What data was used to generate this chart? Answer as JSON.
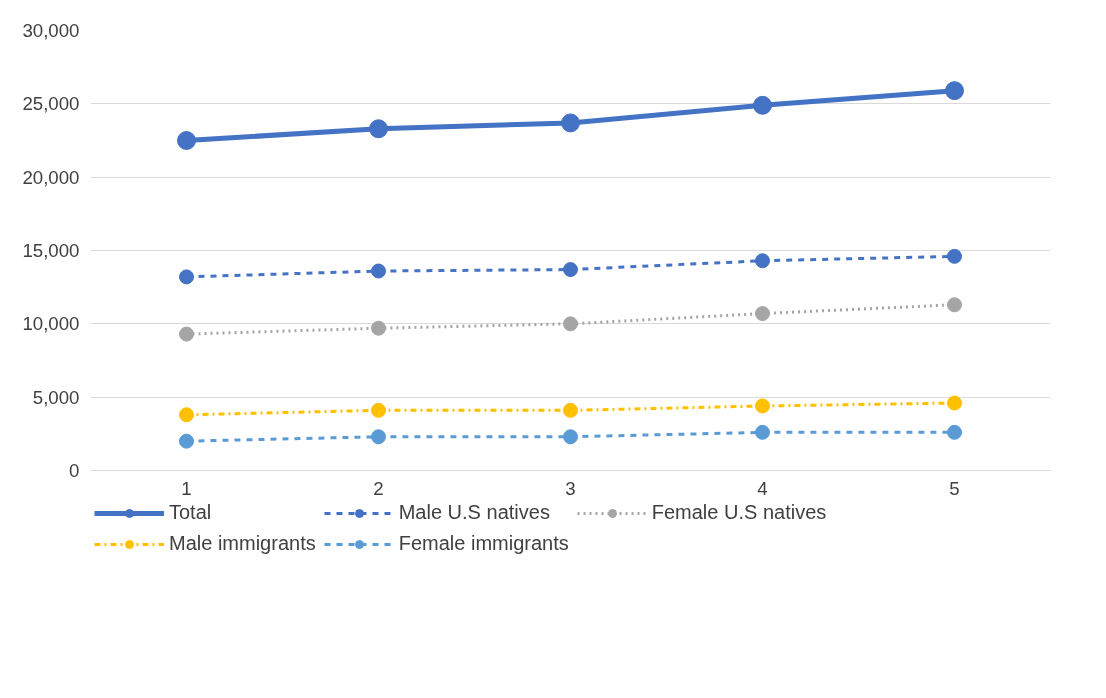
{
  "chart_data": {
    "type": "line",
    "x": [
      1,
      2,
      3,
      4,
      5
    ],
    "xlim": [
      0.5,
      5.5
    ],
    "xticks": [
      1,
      2,
      3,
      4,
      5
    ],
    "ylim": [
      0,
      30000
    ],
    "yticks": [
      {
        "value": 0,
        "label": "0"
      },
      {
        "value": 5000,
        "label": "5,000"
      },
      {
        "value": 10000,
        "label": "10,000"
      },
      {
        "value": 15000,
        "label": "15,000"
      },
      {
        "value": 20000,
        "label": "20,000"
      },
      {
        "value": 25000,
        "label": "25,000"
      },
      {
        "value": 30000,
        "label": "30,000"
      }
    ],
    "grid": "y",
    "legend": "bottom",
    "marker": "circle",
    "series": [
      {
        "name": "Total",
        "color": "#4472c4",
        "line_style": "solid",
        "values": [
          22500,
          23300,
          23700,
          24900,
          25900
        ]
      },
      {
        "name": "Male U.S natives",
        "color": "#4472c4",
        "line_style": "dashed",
        "values": [
          13200,
          13600,
          13700,
          14300,
          14600
        ]
      },
      {
        "name": "Female U.S natives",
        "color": "#a5a5a5",
        "line_style": "dotted",
        "values": [
          9300,
          9700,
          10000,
          10700,
          11300
        ]
      },
      {
        "name": "Male immigrants",
        "color": "#ffc000",
        "line_style": "dashdot",
        "values": [
          3800,
          4100,
          4100,
          4400,
          4600
        ]
      },
      {
        "name": "Female immigrants",
        "color": "#5b9bd5",
        "line_style": "dashed",
        "values": [
          2000,
          2300,
          2300,
          2600,
          2600
        ]
      }
    ]
  }
}
